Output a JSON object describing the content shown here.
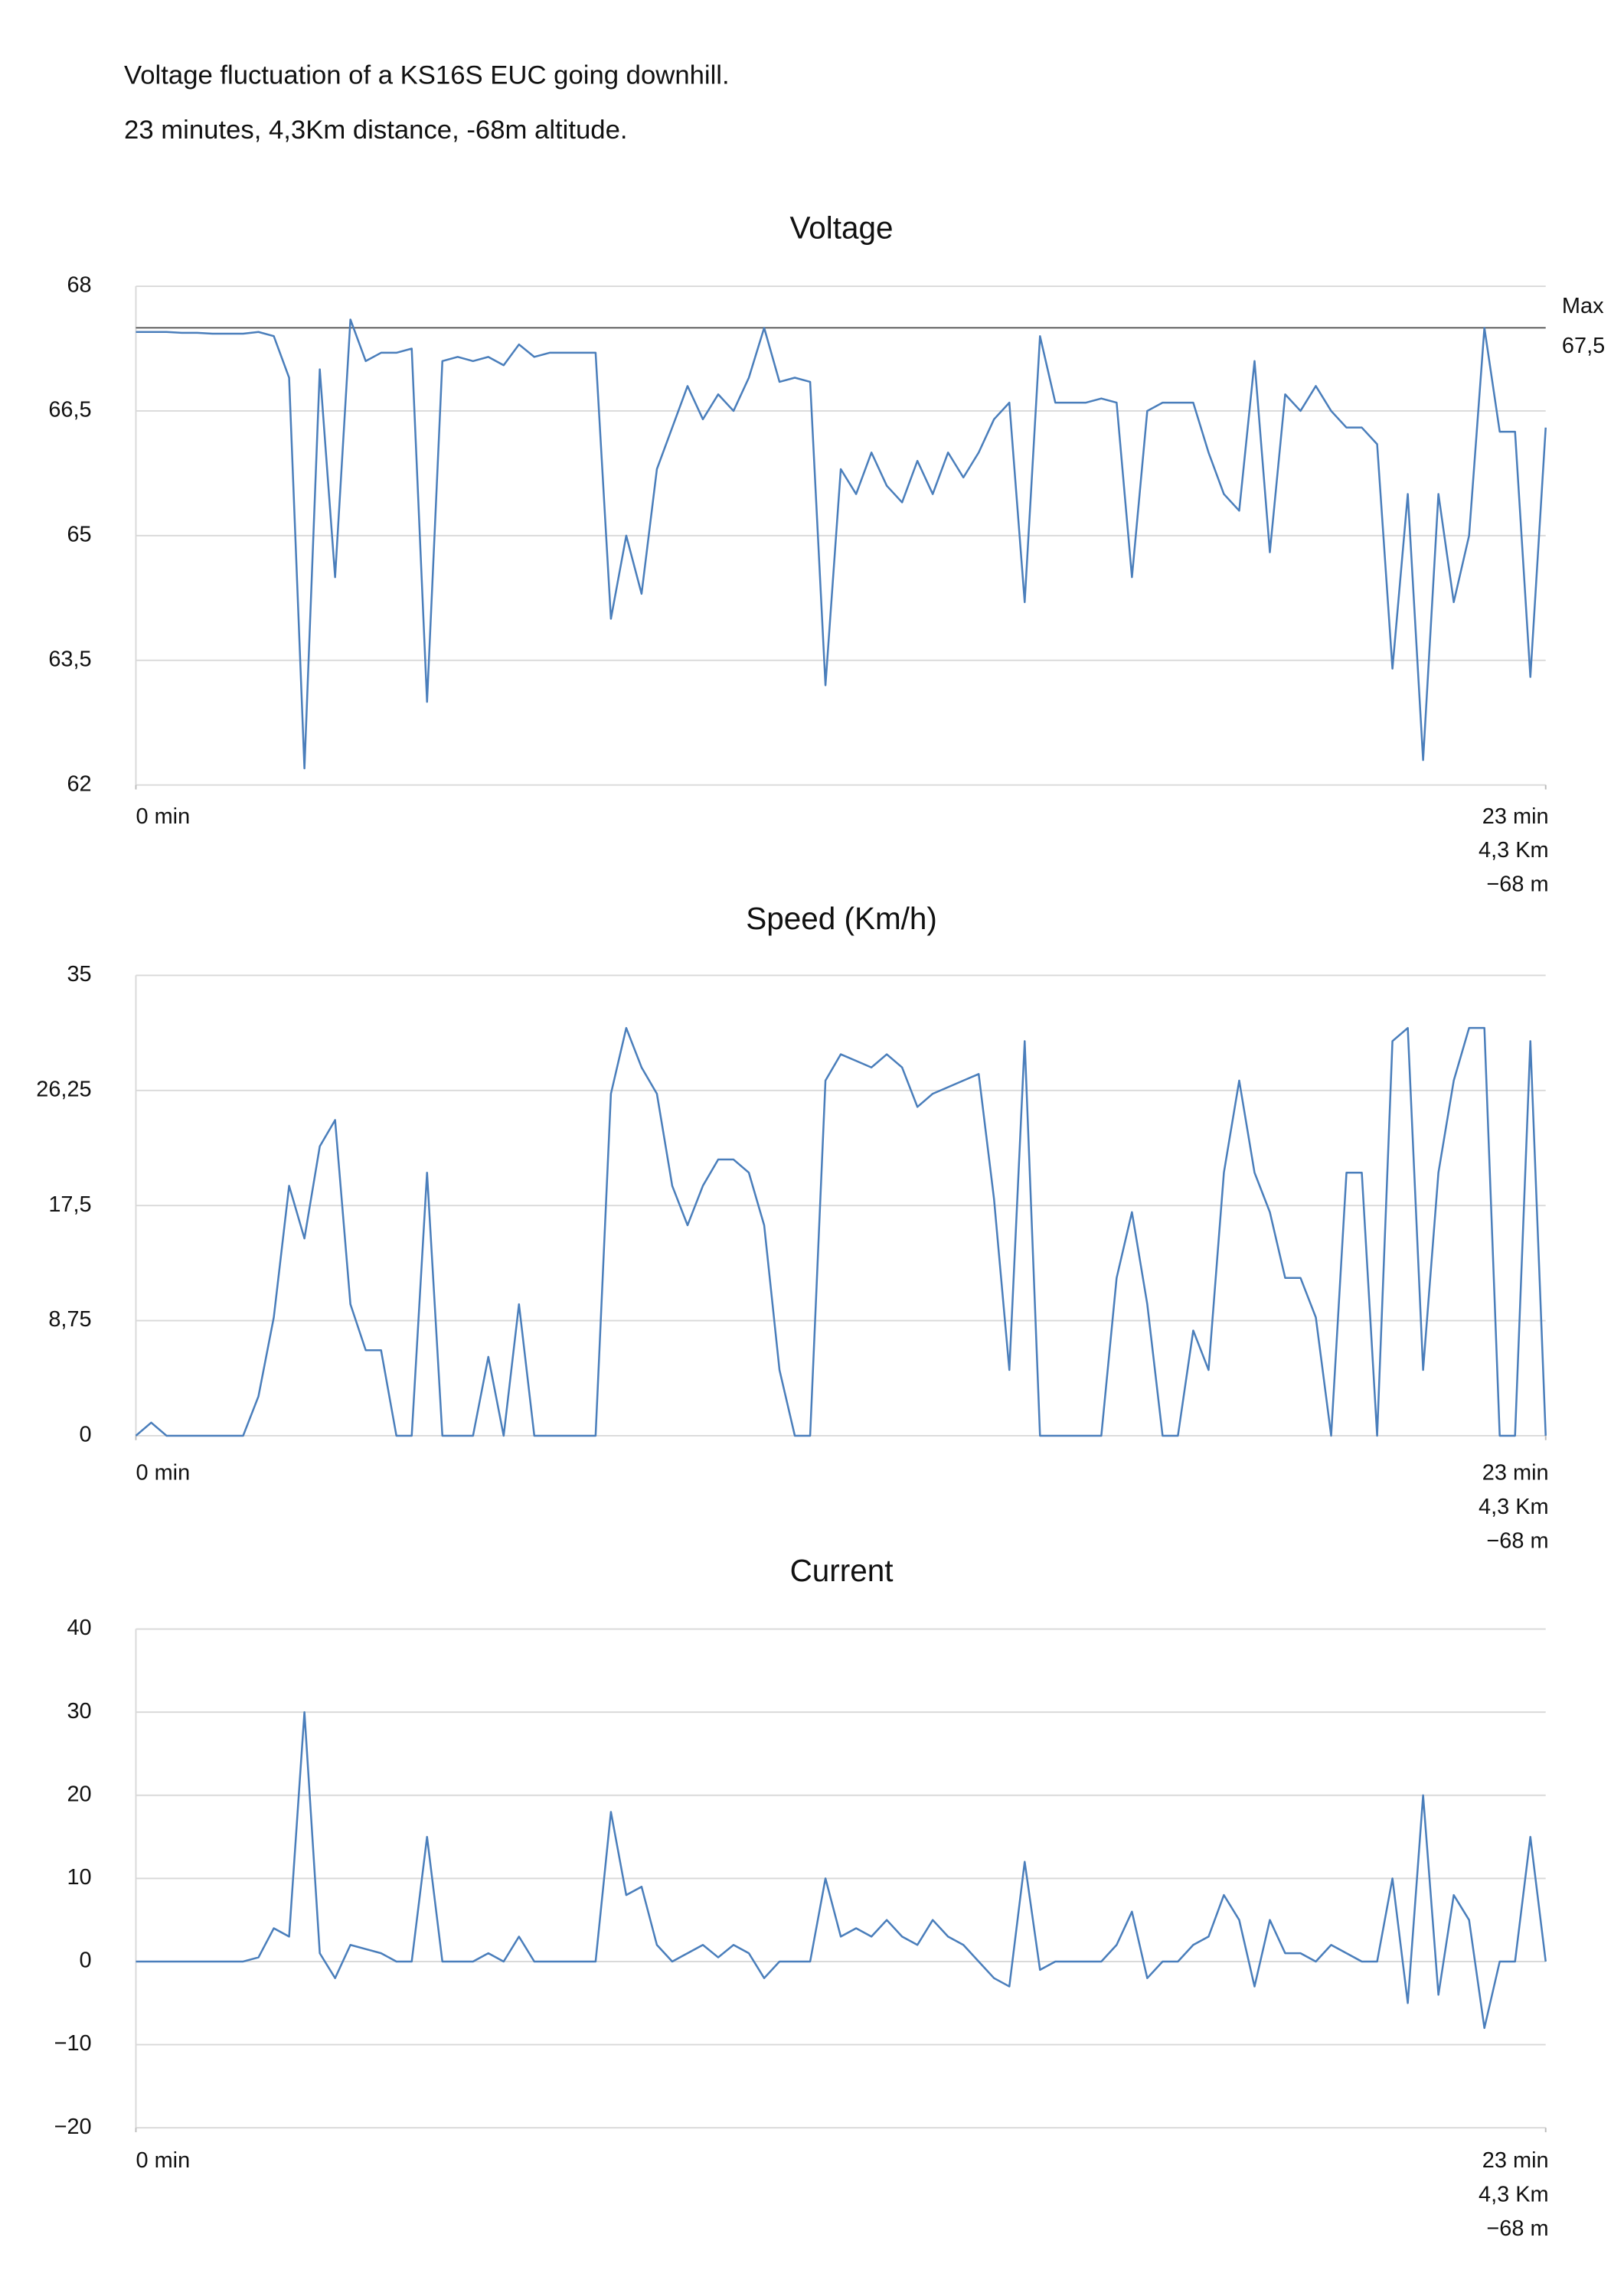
{
  "header": {
    "lines": [
      "Voltage fluctuation of a KS16S EUC going downhill.",
      "23 minutes, 4,3Km distance, -68m altitude."
    ]
  },
  "chart_data": [
    {
      "type": "line",
      "title": "Voltage",
      "color": "#4a7ebb",
      "grid": true,
      "x": [
        0,
        0.25,
        0.5,
        0.75,
        1,
        1.25,
        1.5,
        1.75,
        2,
        2.25,
        2.5,
        2.75,
        3,
        3.25,
        3.5,
        3.75,
        4,
        4.25,
        4.5,
        4.75,
        5,
        5.25,
        5.5,
        5.75,
        6,
        6.25,
        6.5,
        6.75,
        7,
        7.25,
        7.5,
        7.75,
        8,
        8.25,
        8.5,
        8.75,
        9,
        9.25,
        9.5,
        9.75,
        10,
        10.25,
        10.5,
        10.75,
        11,
        11.25,
        11.5,
        11.75,
        12,
        12.25,
        12.5,
        12.75,
        13,
        13.25,
        13.5,
        13.75,
        14,
        14.25,
        14.5,
        14.75,
        15,
        15.25,
        15.5,
        15.75,
        16,
        16.25,
        16.5,
        16.75,
        17,
        17.25,
        17.5,
        17.75,
        18,
        18.25,
        18.5,
        18.75,
        19,
        19.25,
        19.5,
        19.75,
        20,
        20.25,
        20.5,
        20.75,
        21,
        21.25,
        21.5,
        21.75,
        22,
        22.25,
        22.5,
        22.75,
        23
      ],
      "values": [
        67.45,
        67.45,
        67.45,
        67.44,
        67.44,
        67.43,
        67.43,
        67.43,
        67.45,
        67.4,
        66.9,
        62.2,
        67.0,
        64.5,
        67.6,
        67.1,
        67.2,
        67.2,
        67.25,
        63.0,
        67.1,
        67.15,
        67.1,
        67.15,
        67.05,
        67.3,
        67.15,
        67.2,
        67.2,
        67.2,
        67.2,
        64.0,
        65.0,
        64.3,
        65.8,
        66.3,
        66.8,
        66.4,
        66.7,
        66.5,
        66.9,
        67.5,
        66.85,
        66.9,
        66.85,
        63.2,
        65.8,
        65.5,
        66.0,
        65.6,
        65.4,
        65.9,
        65.5,
        66.0,
        65.7,
        66.0,
        66.4,
        66.6,
        64.2,
        67.4,
        66.6,
        66.6,
        66.6,
        66.65,
        66.6,
        64.5,
        66.5,
        66.6,
        66.6,
        66.6,
        66.0,
        65.5,
        65.3,
        67.1,
        64.8,
        66.7,
        66.5,
        66.8,
        66.5,
        66.3,
        66.3,
        66.1,
        63.4,
        65.5,
        62.3,
        65.5,
        64.2,
        65.0,
        67.5,
        66.25,
        66.25,
        63.3,
        66.3
      ],
      "xlim": [
        0,
        23
      ],
      "xticks": [
        {
          "value": 0,
          "label": "0 min"
        },
        {
          "value": 23,
          "label": "23 min"
        }
      ],
      "x_end_labels": [
        "4,3 Km",
        "−68 m"
      ],
      "ylim": [
        62,
        68
      ],
      "yticks": [
        62,
        {
          "value": 63.5,
          "label": "63,5"
        },
        65,
        {
          "value": 66.5,
          "label": "66,5"
        },
        68
      ],
      "reference_line": {
        "value": 67.5,
        "label": "Max",
        "value_label": "67,5"
      }
    },
    {
      "type": "line",
      "title": "Speed (Km/h)",
      "color": "#4a7ebb",
      "grid": true,
      "x": [
        0,
        0.25,
        0.5,
        0.75,
        1,
        1.25,
        1.5,
        1.75,
        2,
        2.25,
        2.5,
        2.75,
        3,
        3.25,
        3.5,
        3.75,
        4,
        4.25,
        4.5,
        4.75,
        5,
        5.25,
        5.5,
        5.75,
        6,
        6.25,
        6.5,
        6.75,
        7,
        7.25,
        7.5,
        7.75,
        8,
        8.25,
        8.5,
        8.75,
        9,
        9.25,
        9.5,
        9.75,
        10,
        10.25,
        10.5,
        10.75,
        11,
        11.25,
        11.5,
        11.75,
        12,
        12.25,
        12.5,
        12.75,
        13,
        13.25,
        13.5,
        13.75,
        14,
        14.25,
        14.5,
        14.75,
        15,
        15.25,
        15.5,
        15.75,
        16,
        16.25,
        16.5,
        16.75,
        17,
        17.25,
        17.5,
        17.75,
        18,
        18.25,
        18.5,
        18.75,
        19,
        19.25,
        19.5,
        19.75,
        20,
        20.25,
        20.5,
        20.75,
        21,
        21.25,
        21.5,
        21.75,
        22,
        22.25,
        22.5,
        22.75,
        23
      ],
      "values": [
        0,
        1,
        0,
        0,
        0,
        0,
        0,
        0,
        3,
        9,
        19,
        15,
        22,
        24,
        10,
        6.5,
        6.5,
        0,
        0,
        20,
        0,
        0,
        0,
        6,
        0,
        10,
        0,
        0,
        0,
        0,
        0,
        26,
        31,
        28,
        26,
        19,
        16,
        19,
        21,
        21,
        20,
        16,
        5,
        0,
        0,
        27,
        29,
        28.5,
        28,
        29,
        28,
        25,
        26,
        26.5,
        27,
        27.5,
        18,
        5,
        30,
        0,
        0,
        0,
        0,
        0,
        12,
        17,
        10,
        0,
        0,
        8,
        5,
        20,
        27,
        20,
        17,
        12,
        12,
        9,
        0,
        20,
        20,
        0,
        30,
        31,
        5,
        20,
        27,
        31,
        31,
        0,
        0,
        30,
        0
      ],
      "xlim": [
        0,
        23
      ],
      "xticks": [
        {
          "value": 0,
          "label": "0 min"
        },
        {
          "value": 23,
          "label": "23 min"
        }
      ],
      "x_end_labels": [
        "4,3 Km",
        "−68 m"
      ],
      "ylim": [
        0,
        35
      ],
      "yticks": [
        0,
        {
          "value": 8.75,
          "label": "8,75"
        },
        {
          "value": 17.5,
          "label": "17,5"
        },
        {
          "value": 26.25,
          "label": "26,25"
        },
        35
      ]
    },
    {
      "type": "line",
      "title": "Current",
      "color": "#4a7ebb",
      "grid": true,
      "x": [
        0,
        0.25,
        0.5,
        0.75,
        1,
        1.25,
        1.5,
        1.75,
        2,
        2.25,
        2.5,
        2.75,
        3,
        3.25,
        3.5,
        3.75,
        4,
        4.25,
        4.5,
        4.75,
        5,
        5.25,
        5.5,
        5.75,
        6,
        6.25,
        6.5,
        6.75,
        7,
        7.25,
        7.5,
        7.75,
        8,
        8.25,
        8.5,
        8.75,
        9,
        9.25,
        9.5,
        9.75,
        10,
        10.25,
        10.5,
        10.75,
        11,
        11.25,
        11.5,
        11.75,
        12,
        12.25,
        12.5,
        12.75,
        13,
        13.25,
        13.5,
        13.75,
        14,
        14.25,
        14.5,
        14.75,
        15,
        15.25,
        15.5,
        15.75,
        16,
        16.25,
        16.5,
        16.75,
        17,
        17.25,
        17.5,
        17.75,
        18,
        18.25,
        18.5,
        18.75,
        19,
        19.25,
        19.5,
        19.75,
        20,
        20.25,
        20.5,
        20.75,
        21,
        21.25,
        21.5,
        21.75,
        22,
        22.25,
        22.5,
        22.75,
        23
      ],
      "values": [
        0,
        0,
        0,
        0,
        0,
        0,
        0,
        0,
        0.5,
        4,
        3,
        30,
        1,
        -2,
        2,
        1.5,
        1,
        0,
        0,
        15,
        0,
        0,
        0,
        1,
        0,
        3,
        0,
        0,
        0,
        0,
        0,
        18,
        8,
        9,
        2,
        0,
        1,
        2,
        0.5,
        2,
        1,
        -2,
        0,
        0,
        0,
        10,
        3,
        4,
        3,
        5,
        3,
        2,
        5,
        3,
        2,
        0,
        -2,
        -3,
        12,
        -1,
        0,
        0,
        0,
        0,
        2,
        6,
        -2,
        0,
        0,
        2,
        3,
        8,
        5,
        -3,
        5,
        1,
        1,
        0,
        2,
        1,
        0,
        0,
        10,
        -5,
        20,
        -4,
        8,
        5,
        -8,
        0,
        0,
        15,
        0
      ],
      "xlim": [
        0,
        23
      ],
      "xticks": [
        {
          "value": 0,
          "label": "0 min"
        },
        {
          "value": 23,
          "label": "23 min"
        }
      ],
      "x_end_labels": [
        "4,3 Km",
        "−68 m"
      ],
      "ylim": [
        -20,
        40
      ],
      "yticks": [
        {
          "value": -20,
          "label": "−20"
        },
        {
          "value": -10,
          "label": "−10"
        },
        0,
        10,
        20,
        30,
        40
      ]
    }
  ]
}
